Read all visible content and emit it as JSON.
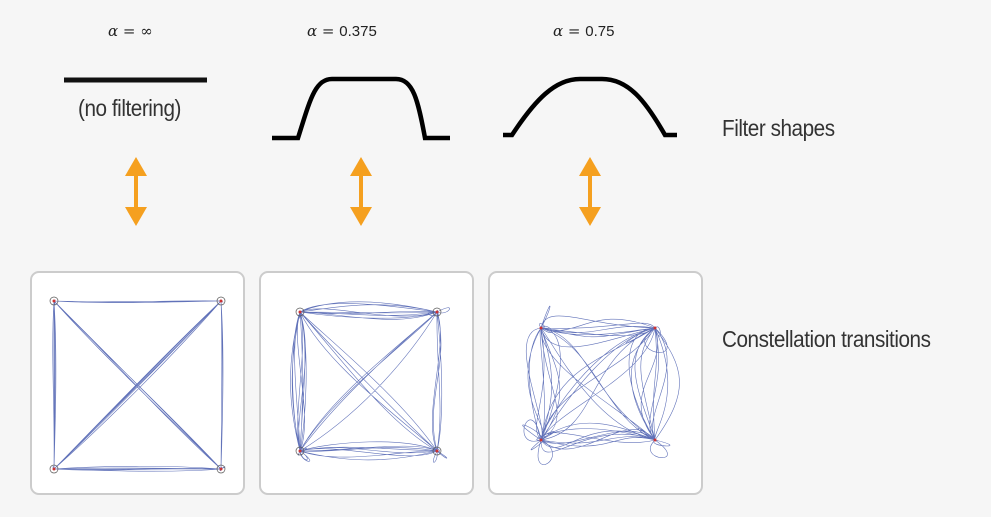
{
  "filters": [
    {
      "alpha_symbol": "α",
      "alpha_value": "∞",
      "note": "(no filtering)",
      "rolloff": null
    },
    {
      "alpha_symbol": "α",
      "alpha_value": "0.375",
      "rolloff": 0.375
    },
    {
      "alpha_symbol": "α",
      "alpha_value": "0.75",
      "rolloff": 0.75
    }
  ],
  "labels": {
    "filter_shapes": "Filter shapes",
    "constellation_transitions": "Constellation transitions"
  },
  "colors": {
    "arrow": "#f5a01f",
    "trace": "#3a4fa8",
    "curve": "#000000",
    "panel_border": "#cccccc",
    "symbol_marker": "#cc3333"
  },
  "icons": {
    "link": "double-headed-vertical-arrow"
  }
}
